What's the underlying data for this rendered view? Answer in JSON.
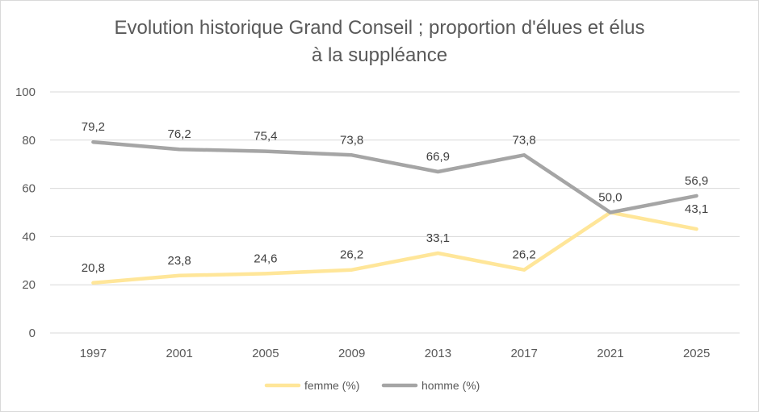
{
  "chart_data": {
    "type": "line",
    "title_lines": [
      "Evolution historique Grand Conseil ; proportion d'élues et élus",
      "à la suppléance"
    ],
    "xlabel": "",
    "ylabel": "",
    "categories": [
      "1997",
      "2001",
      "2005",
      "2009",
      "2013",
      "2017",
      "2021",
      "2025"
    ],
    "ylim": [
      0,
      100
    ],
    "yticks": [
      "0",
      "20",
      "40",
      "60",
      "80",
      "100"
    ],
    "grid": true,
    "legend_position": "bottom",
    "series": [
      {
        "name": "femme (%)",
        "color": "#ffe699",
        "values": [
          20.8,
          23.8,
          24.6,
          26.2,
          33.1,
          26.2,
          50.0,
          43.1
        ],
        "labels": [
          "20,8",
          "23,8",
          "24,6",
          "26,2",
          "33,1",
          "26,2",
          "50,0",
          "43,1"
        ]
      },
      {
        "name": "homme (%)",
        "color": "#a5a5a5",
        "values": [
          79.2,
          76.2,
          75.4,
          73.8,
          66.9,
          73.8,
          50.0,
          56.9
        ],
        "labels": [
          "79,2",
          "76,2",
          "75,4",
          "73,8",
          "66,9",
          "73,8",
          "50,0",
          "56,9"
        ]
      }
    ]
  }
}
